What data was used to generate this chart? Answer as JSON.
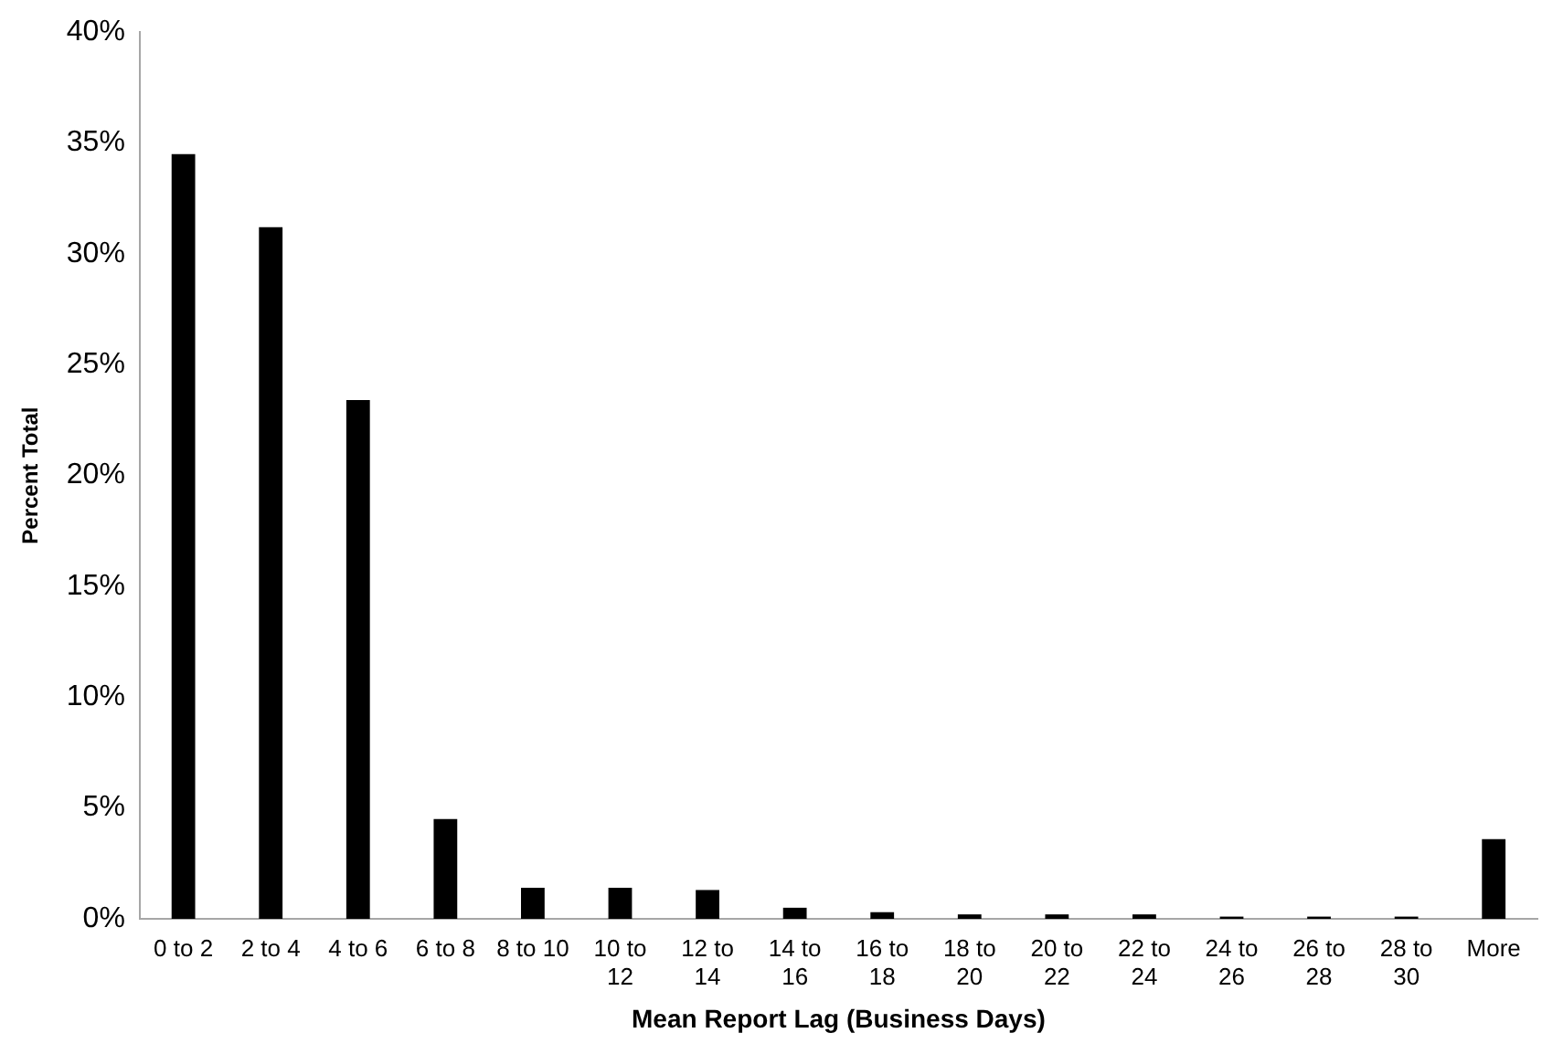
{
  "chart_data": {
    "type": "bar",
    "xlabel": "Mean Report Lag (Business Days)",
    "ylabel": "Percent Total",
    "categories": [
      "0 to 2",
      "2 to 4",
      "4 to 6",
      "6 to 8",
      "8 to 10",
      "10 to 12",
      "12 to 14",
      "14 to 16",
      "16 to 18",
      "18 to 20",
      "20 to 22",
      "22 to 24",
      "24 to 26",
      "26 to 28",
      "28 to 30",
      "More"
    ],
    "values": [
      34.5,
      31.2,
      23.4,
      4.5,
      1.4,
      1.4,
      1.3,
      0.5,
      0.3,
      0.2,
      0.2,
      0.2,
      0.1,
      0.1,
      0.1,
      3.6
    ],
    "color": "#000000",
    "ylim": [
      0,
      40
    ],
    "yticks": [
      {
        "value": 0,
        "label": "0%"
      },
      {
        "value": 5,
        "label": "5%"
      },
      {
        "value": 10,
        "label": "10%"
      },
      {
        "value": 15,
        "label": "15%"
      },
      {
        "value": 20,
        "label": "20%"
      },
      {
        "value": 25,
        "label": "25%"
      },
      {
        "value": 30,
        "label": "30%"
      },
      {
        "value": 35,
        "label": "35%"
      },
      {
        "value": 40,
        "label": "40%"
      }
    ],
    "grid": false,
    "legend": false
  }
}
